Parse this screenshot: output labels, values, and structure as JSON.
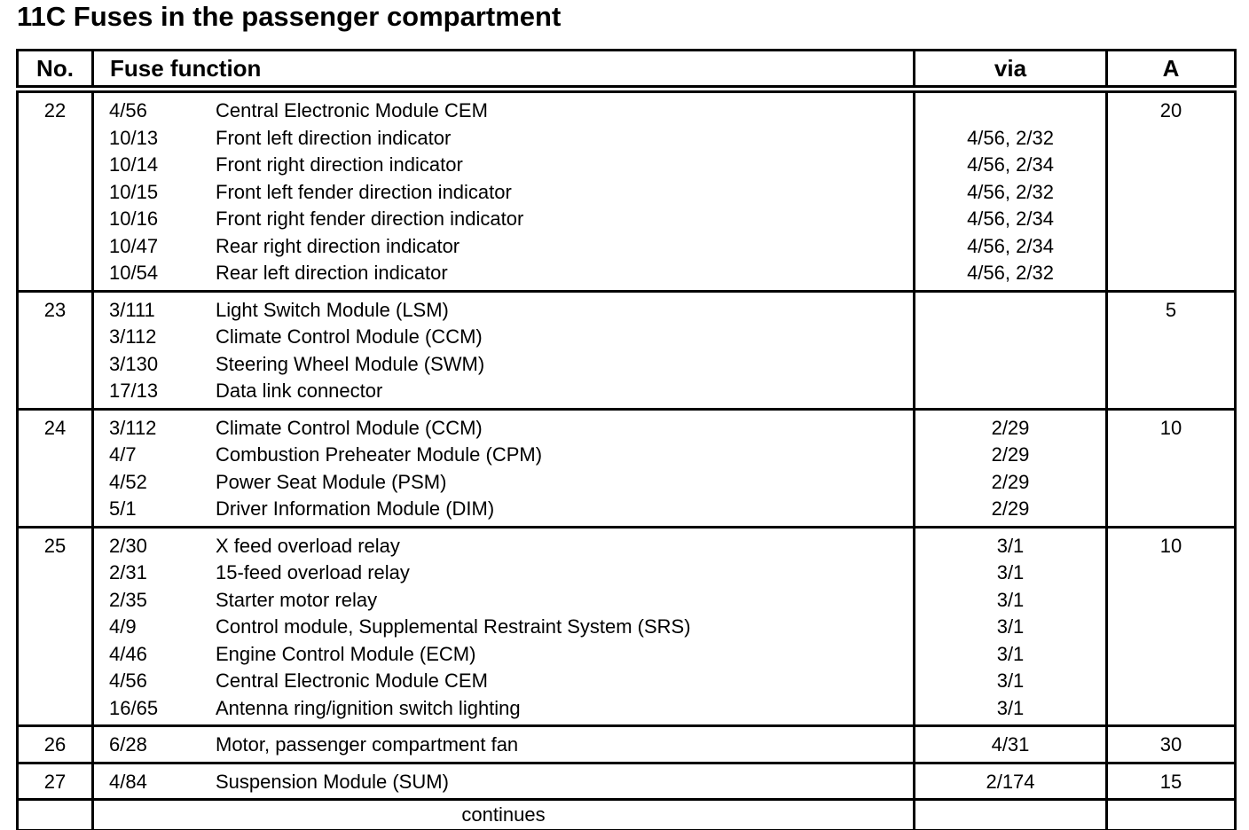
{
  "title": "11C Fuses in the passenger compartment",
  "colors": {
    "text": "#000000",
    "background": "#ffffff",
    "border": "#000000"
  },
  "table": {
    "columns": {
      "no": "No.",
      "function": "Fuse function",
      "via": "via",
      "amp": "A"
    },
    "rows": [
      {
        "no": "22",
        "amp": "20",
        "lines": [
          {
            "code": "4/56",
            "func": "Central Electronic Module CEM",
            "via": ""
          },
          {
            "code": "10/13",
            "func": "Front left direction indicator",
            "via": "4/56, 2/32"
          },
          {
            "code": "10/14",
            "func": "Front right direction indicator",
            "via": "4/56, 2/34"
          },
          {
            "code": "10/15",
            "func": "Front left fender direction indicator",
            "via": "4/56, 2/32"
          },
          {
            "code": "10/16",
            "func": "Front right fender direction indicator",
            "via": "4/56, 2/34"
          },
          {
            "code": "10/47",
            "func": "Rear right direction indicator",
            "via": "4/56, 2/34"
          },
          {
            "code": "10/54",
            "func": "Rear left direction indicator",
            "via": "4/56, 2/32"
          }
        ]
      },
      {
        "no": "23",
        "amp": "5",
        "lines": [
          {
            "code": "3/111",
            "func": "Light Switch Module (LSM)",
            "via": ""
          },
          {
            "code": "3/112",
            "func": "Climate Control Module (CCM)",
            "via": ""
          },
          {
            "code": "3/130",
            "func": "Steering Wheel Module (SWM)",
            "via": ""
          },
          {
            "code": "17/13",
            "func": "Data link connector",
            "via": ""
          }
        ]
      },
      {
        "no": "24",
        "amp": "10",
        "lines": [
          {
            "code": "3/112",
            "func": "Climate Control Module (CCM)",
            "via": "2/29"
          },
          {
            "code": "4/7",
            "func": "Combustion Preheater Module (CPM)",
            "via": "2/29"
          },
          {
            "code": "4/52",
            "func": "Power Seat Module (PSM)",
            "via": "2/29"
          },
          {
            "code": "5/1",
            "func": "Driver Information Module (DIM)",
            "via": "2/29"
          }
        ]
      },
      {
        "no": "25",
        "amp": "10",
        "lines": [
          {
            "code": "2/30",
            "func": "X feed overload relay",
            "via": "3/1"
          },
          {
            "code": "2/31",
            "func": "15-feed overload relay",
            "via": "3/1"
          },
          {
            "code": "2/35",
            "func": "Starter motor relay",
            "via": "3/1"
          },
          {
            "code": "4/9",
            "func": "Control module, Supplemental Restraint System (SRS)",
            "via": "3/1"
          },
          {
            "code": "4/46",
            "func": "Engine Control Module (ECM)",
            "via": "3/1"
          },
          {
            "code": "4/56",
            "func": "Central Electronic Module CEM",
            "via": "3/1"
          },
          {
            "code": "16/65",
            "func": "Antenna ring/ignition switch lighting",
            "via": "3/1"
          }
        ]
      },
      {
        "no": "26",
        "amp": "30",
        "lines": [
          {
            "code": "6/28",
            "func": "Motor, passenger compartment fan",
            "via": "4/31"
          }
        ]
      },
      {
        "no": "27",
        "amp": "15",
        "lines": [
          {
            "code": "4/84",
            "func": "Suspension Module (SUM)",
            "via": "2/174"
          }
        ]
      }
    ],
    "footer": "continues"
  }
}
